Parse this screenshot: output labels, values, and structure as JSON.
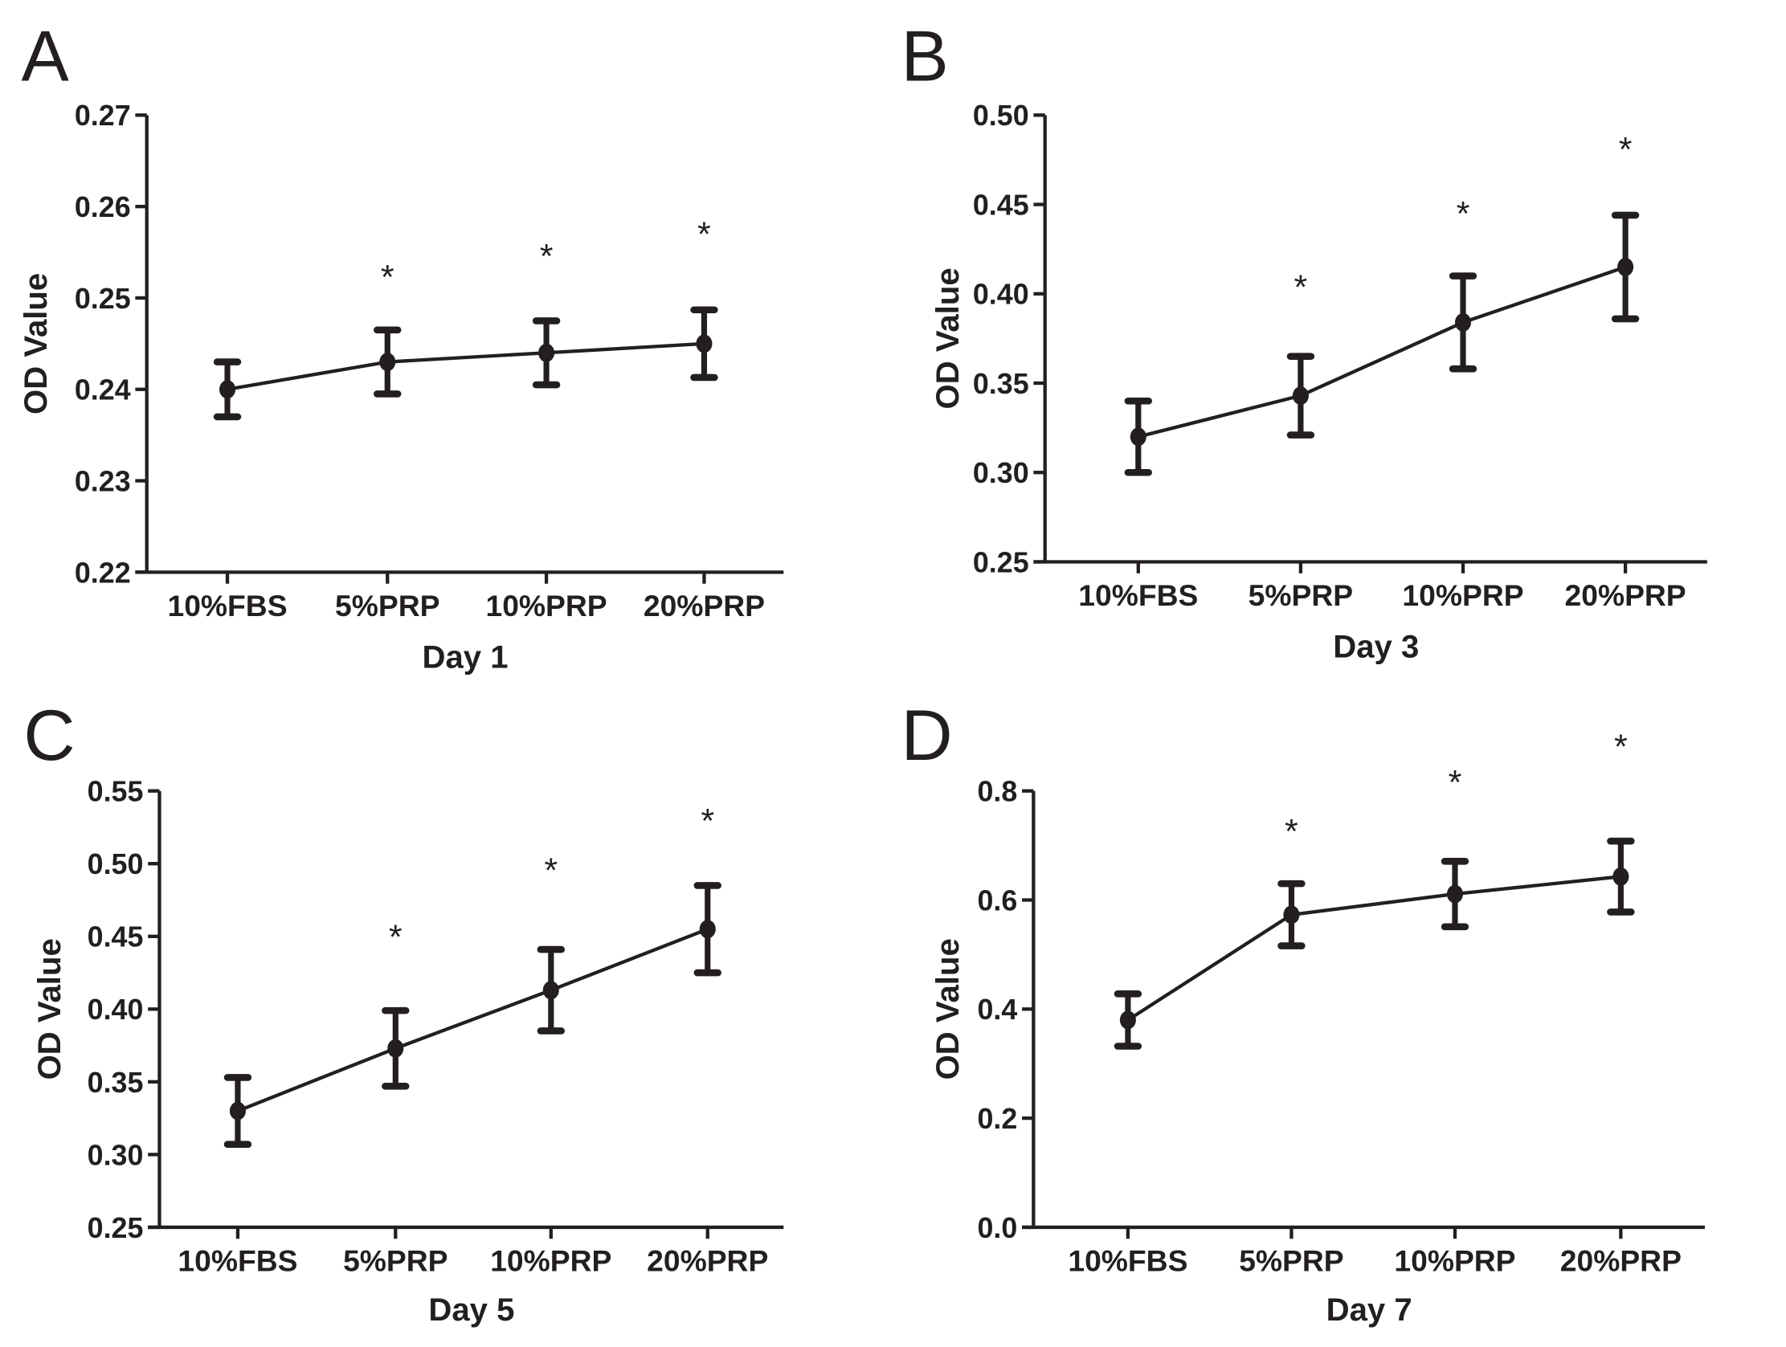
{
  "chart_data": [
    {
      "panel": "A",
      "type": "line",
      "title": "Day 1",
      "xlabel": "Day 1",
      "ylabel": "OD Value",
      "categories": [
        "10%FBS",
        "5%PRP",
        "10%PRP",
        "20%PRP"
      ],
      "values": [
        0.24,
        0.243,
        0.244,
        0.245
      ],
      "errors": [
        0.003,
        0.0035,
        0.0035,
        0.0037
      ],
      "significance": [
        "",
        "*",
        "*",
        "*"
      ],
      "star_levels": [
        null,
        0.2525,
        0.2548,
        0.2572
      ],
      "ylim": [
        0.22,
        0.27
      ],
      "yticks": [
        "0.22",
        "0.23",
        "0.24",
        "0.25",
        "0.26",
        "0.27"
      ],
      "grid": false
    },
    {
      "panel": "B",
      "type": "line",
      "title": "Day 3",
      "xlabel": "Day 3",
      "ylabel": "OD Value",
      "categories": [
        "10%FBS",
        "5%PRP",
        "10%PRP",
        "20%PRP"
      ],
      "values": [
        0.32,
        0.343,
        0.384,
        0.415
      ],
      "errors": [
        0.02,
        0.022,
        0.026,
        0.029
      ],
      "significance": [
        "",
        "*",
        "*",
        "*"
      ],
      "star_levels": [
        null,
        0.405,
        0.446,
        0.482
      ],
      "ylim": [
        0.25,
        0.5
      ],
      "yticks": [
        "0.25",
        "0.30",
        "0.35",
        "0.40",
        "0.45",
        "0.50"
      ],
      "grid": false
    },
    {
      "panel": "C",
      "type": "line",
      "title": "Day 5",
      "xlabel": "Day 5",
      "ylabel": "OD Value",
      "categories": [
        "10%FBS",
        "5%PRP",
        "10%PRP",
        "20%PRP"
      ],
      "values": [
        0.33,
        0.373,
        0.413,
        0.455
      ],
      "errors": [
        0.023,
        0.026,
        0.028,
        0.03
      ],
      "significance": [
        "",
        "*",
        "*",
        "*"
      ],
      "star_levels": [
        null,
        0.451,
        0.497,
        0.531
      ],
      "ylim": [
        0.25,
        0.55
      ],
      "yticks": [
        "0.25",
        "0.30",
        "0.35",
        "0.40",
        "0.45",
        "0.50",
        "0.55"
      ],
      "grid": false
    },
    {
      "panel": "D",
      "type": "line",
      "title": "Day 7",
      "xlabel": "Day 7",
      "ylabel": "OD Value",
      "categories": [
        "10%FBS",
        "5%PRP",
        "10%PRP",
        "20%PRP"
      ],
      "values": [
        0.38,
        0.573,
        0.611,
        0.643
      ],
      "errors": [
        0.048,
        0.057,
        0.06,
        0.065
      ],
      "significance": [
        "",
        "*",
        "*",
        "*"
      ],
      "star_levels": [
        null,
        0.73,
        0.82,
        0.885
      ],
      "ylim": [
        0.0,
        0.8
      ],
      "yticks": [
        "0.0",
        "0.2",
        "0.4",
        "0.6",
        "0.8"
      ],
      "grid": false
    }
  ]
}
